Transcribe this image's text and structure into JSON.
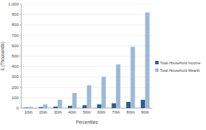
{
  "chart_data": {
    "type": "bar",
    "xlabel": "Percentiles",
    "ylabel": "£ (Thousands)",
    "categories": [
      "10th",
      "20th",
      "30th",
      "40th",
      "50th",
      "60th",
      "70th",
      "80th",
      "90th"
    ],
    "series": [
      {
        "name": "Total Household Income",
        "color": "#2f5f8c",
        "values": [
          5,
          10,
          15,
          22,
          28,
          36,
          46,
          60,
          80
        ]
      },
      {
        "name": "Total Household Wealth",
        "color": "#9db9d6",
        "values": [
          12,
          35,
          80,
          145,
          220,
          300,
          420,
          590,
          920
        ]
      }
    ],
    "ylim": [
      0,
      1000
    ],
    "yticks": [
      0,
      100,
      200,
      300,
      400,
      500,
      600,
      700,
      800,
      900,
      {
        "value": 1000,
        "label": "1,000"
      }
    ],
    "grid": true,
    "legend": "right"
  }
}
